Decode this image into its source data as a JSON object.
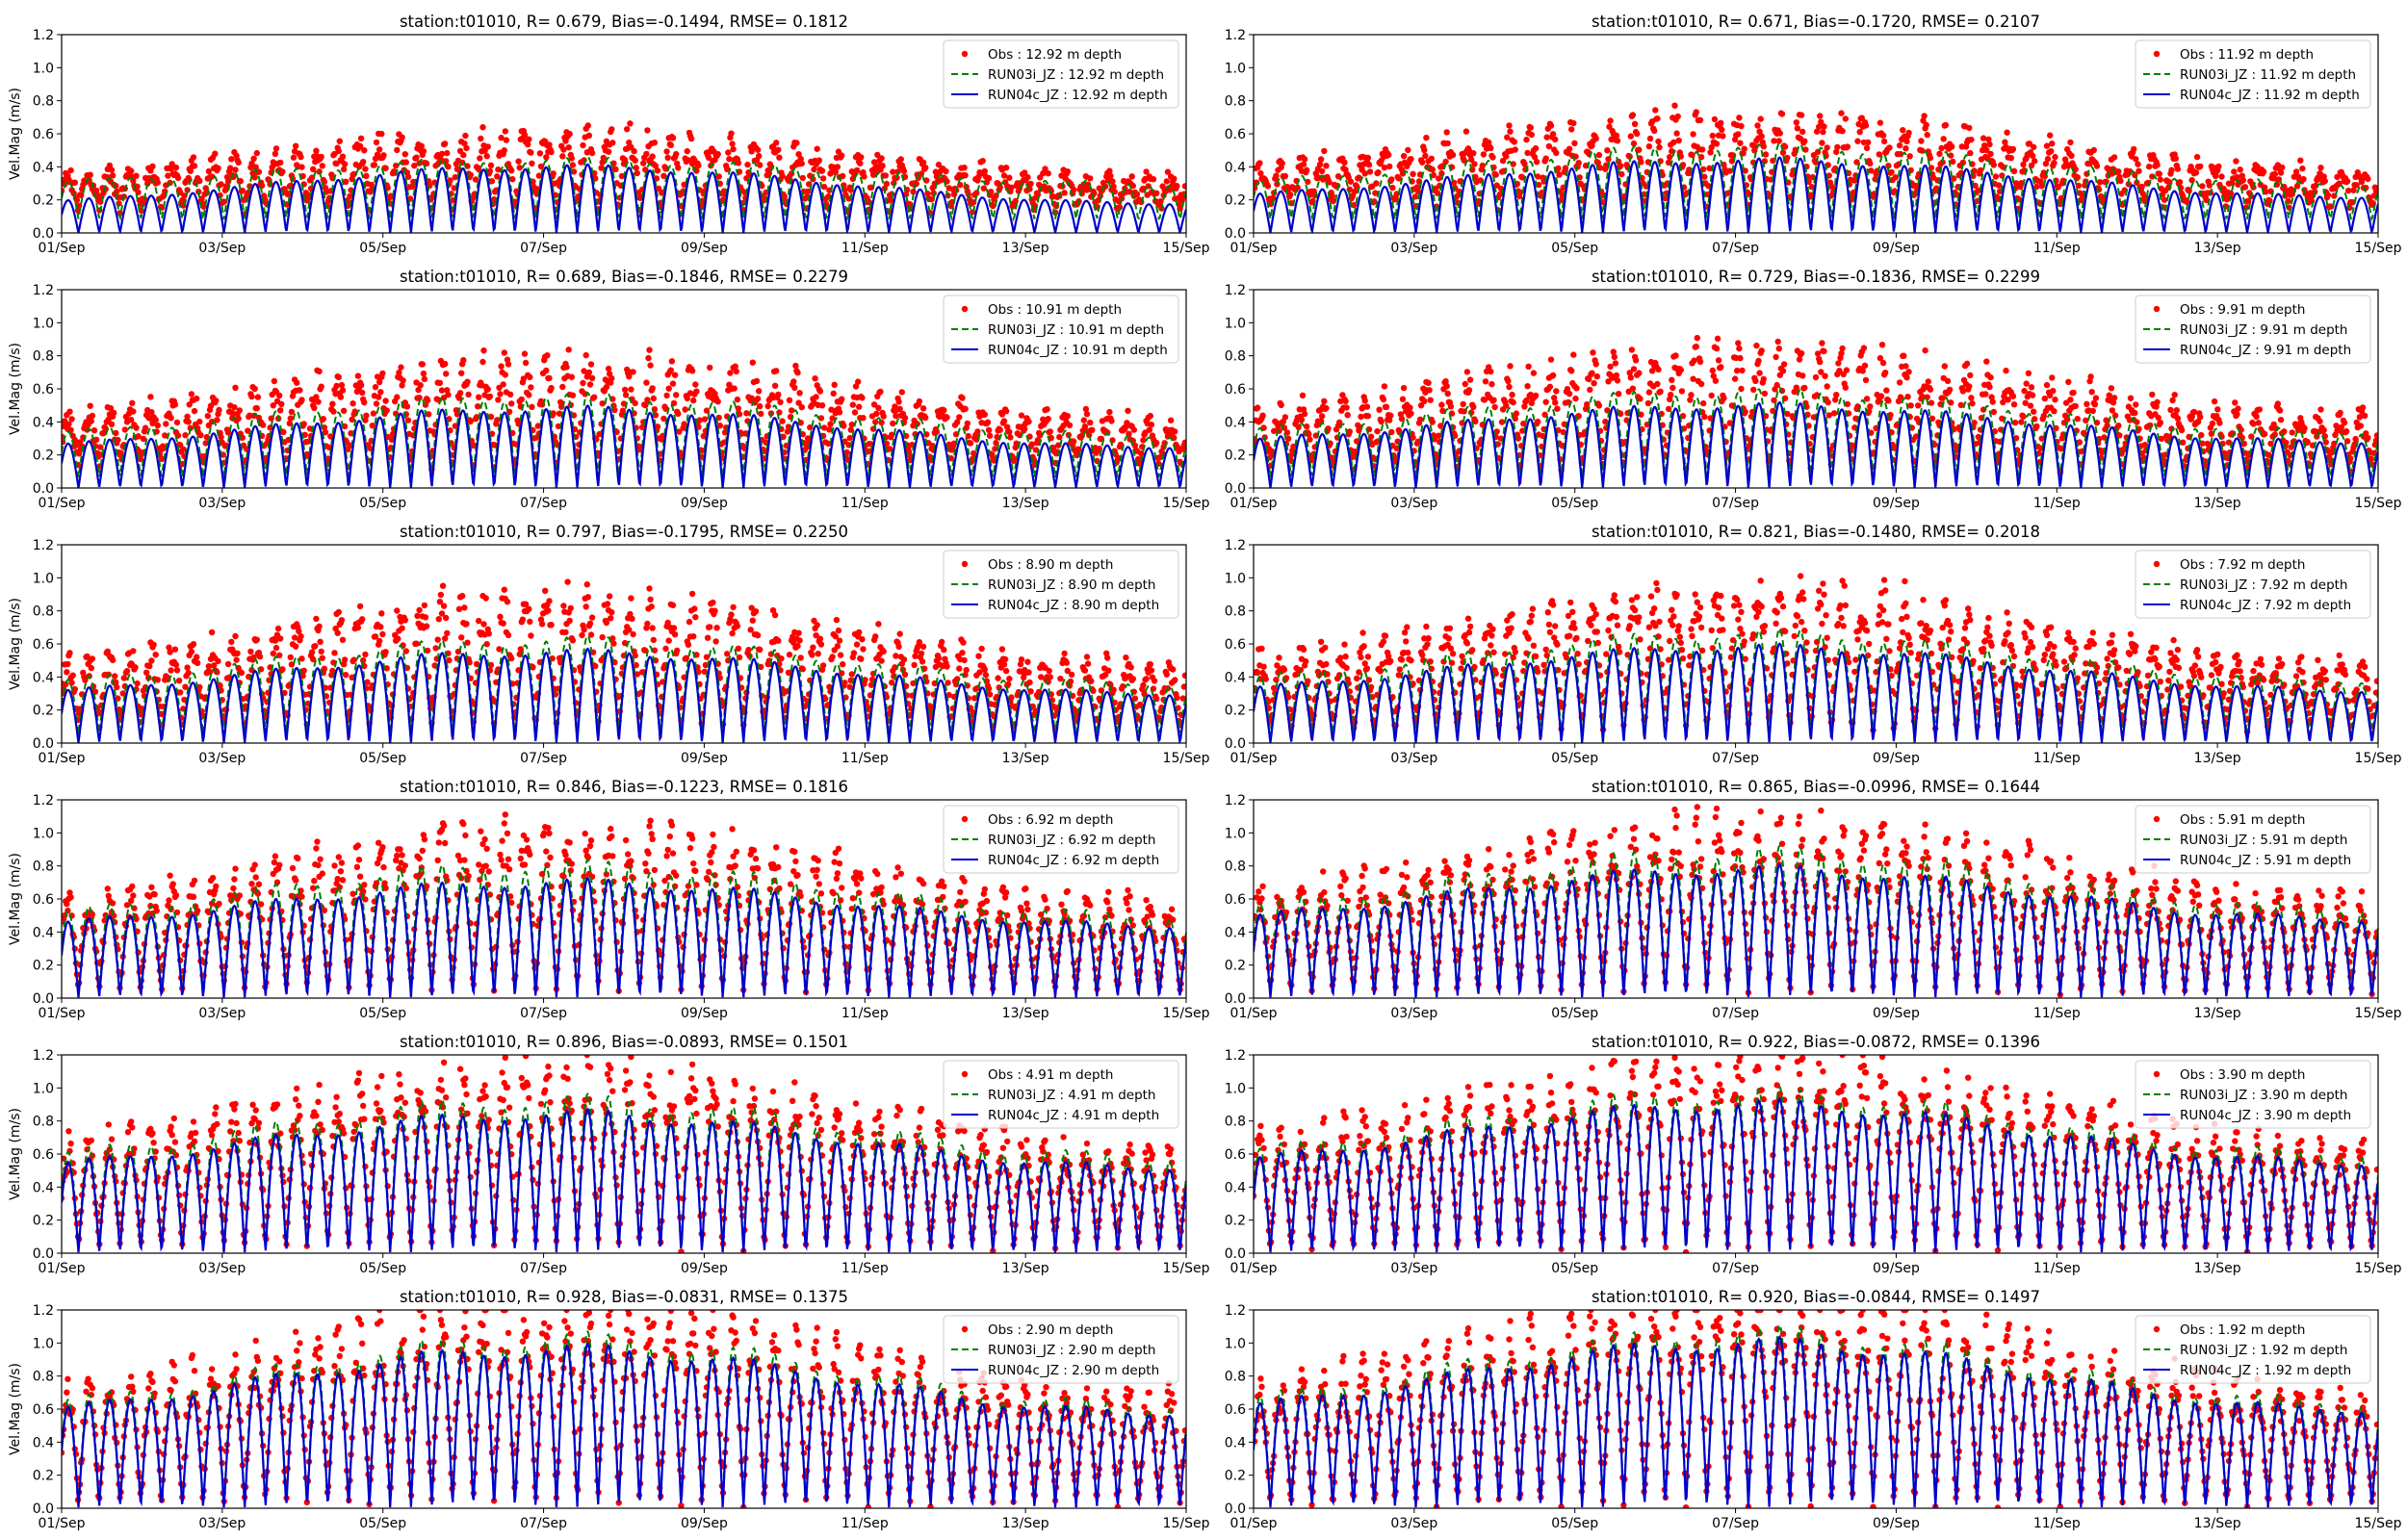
{
  "figure": {
    "background": "#ffffff"
  },
  "style": {
    "obs_color": "#ff0000",
    "run03_color": "#008000",
    "run04_color": "#0000cc",
    "axes_color": "#000000"
  },
  "chart_data": [
    {
      "type": "line",
      "panel": 1,
      "title": "station:t01010, R= 0.679, Bias=-0.1494, RMSE= 0.1812",
      "xlabel": "",
      "ylabel": "Vel.Mag (m/s)",
      "xlim": [
        "2000-09-01",
        "2000-09-15"
      ],
      "x_ticks": [
        "01/Sep",
        "03/Sep",
        "05/Sep",
        "07/Sep",
        "09/Sep",
        "11/Sep",
        "13/Sep",
        "15/Sep"
      ],
      "ylim": [
        0,
        1.2
      ],
      "y_ticks": [
        "0.0",
        "0.2",
        "0.4",
        "0.6",
        "0.8",
        "1.0",
        "1.2"
      ],
      "grid": false,
      "legend": "upper right",
      "series": [
        {
          "name": "Obs : 12.92 m depth",
          "style": "markers",
          "color": "#ff0000",
          "amp_lo": 0.32,
          "amp_hi": 0.58,
          "base": 0.16
        },
        {
          "name": "RUN03i_JZ : 12.92 m depth",
          "style": "dashed",
          "color": "#008000",
          "amp_lo": 0.3,
          "amp_hi": 0.44,
          "base": 0.08
        },
        {
          "name": "RUN04c_JZ : 12.92 m depth",
          "style": "solid",
          "color": "#0000cc",
          "amp_lo": 0.18,
          "amp_hi": 0.4,
          "base": 0.0
        }
      ]
    },
    {
      "type": "line",
      "panel": 2,
      "title": "station:t01010, R= 0.671, Bias=-0.1720, RMSE= 0.2107",
      "xlabel": "",
      "ylabel": "",
      "xlim": [
        "2000-09-01",
        "2000-09-15"
      ],
      "x_ticks": [
        "01/Sep",
        "03/Sep",
        "05/Sep",
        "07/Sep",
        "09/Sep",
        "11/Sep",
        "13/Sep",
        "15/Sep"
      ],
      "ylim": [
        0,
        1.2
      ],
      "y_ticks": [
        "0.0",
        "0.2",
        "0.4",
        "0.6",
        "0.8",
        "1.0",
        "1.2"
      ],
      "grid": false,
      "legend": "upper right",
      "series": [
        {
          "name": "Obs : 11.92 m depth",
          "style": "markers",
          "color": "#ff0000",
          "amp_lo": 0.36,
          "amp_hi": 0.68,
          "base": 0.18
        },
        {
          "name": "RUN03i_JZ : 11.92 m depth",
          "style": "dashed",
          "color": "#008000",
          "amp_lo": 0.3,
          "amp_hi": 0.52,
          "base": 0.08
        },
        {
          "name": "RUN04c_JZ : 11.92 m depth",
          "style": "solid",
          "color": "#0000cc",
          "amp_lo": 0.22,
          "amp_hi": 0.44,
          "base": 0.0
        }
      ]
    },
    {
      "type": "line",
      "panel": 3,
      "title": "station:t01010, R= 0.689, Bias=-0.1846, RMSE= 0.2279",
      "xlabel": "",
      "ylabel": "Vel.Mag (m/s)",
      "xlim": [
        "2000-09-01",
        "2000-09-15"
      ],
      "x_ticks": [
        "01/Sep",
        "03/Sep",
        "05/Sep",
        "07/Sep",
        "09/Sep",
        "11/Sep",
        "13/Sep",
        "15/Sep"
      ],
      "ylim": [
        0,
        1.2
      ],
      "y_ticks": [
        "0.0",
        "0.2",
        "0.4",
        "0.6",
        "0.8",
        "1.0",
        "1.2"
      ],
      "grid": false,
      "legend": "upper right",
      "series": [
        {
          "name": "Obs : 10.91 m depth",
          "style": "markers",
          "color": "#ff0000",
          "amp_lo": 0.4,
          "amp_hi": 0.74,
          "base": 0.16
        },
        {
          "name": "RUN03i_JZ : 10.91 m depth",
          "style": "dashed",
          "color": "#008000",
          "amp_lo": 0.32,
          "amp_hi": 0.55,
          "base": 0.06
        },
        {
          "name": "RUN04c_JZ : 10.91 m depth",
          "style": "solid",
          "color": "#0000cc",
          "amp_lo": 0.25,
          "amp_hi": 0.48,
          "base": 0.0
        }
      ]
    },
    {
      "type": "line",
      "panel": 4,
      "title": "station:t01010, R= 0.729, Bias=-0.1836, RMSE= 0.2299",
      "xlabel": "",
      "ylabel": "",
      "xlim": [
        "2000-09-01",
        "2000-09-15"
      ],
      "x_ticks": [
        "01/Sep",
        "03/Sep",
        "05/Sep",
        "07/Sep",
        "09/Sep",
        "11/Sep",
        "13/Sep",
        "15/Sep"
      ],
      "ylim": [
        0,
        1.2
      ],
      "y_ticks": [
        "0.0",
        "0.2",
        "0.4",
        "0.6",
        "0.8",
        "1.0",
        "1.2"
      ],
      "grid": false,
      "legend": "upper right",
      "series": [
        {
          "name": "Obs : 9.91 m depth",
          "style": "markers",
          "color": "#ff0000",
          "amp_lo": 0.42,
          "amp_hi": 0.8,
          "base": 0.14
        },
        {
          "name": "RUN03i_JZ : 9.91 m depth",
          "style": "dashed",
          "color": "#008000",
          "amp_lo": 0.34,
          "amp_hi": 0.58,
          "base": 0.06
        },
        {
          "name": "RUN04c_JZ : 9.91 m depth",
          "style": "solid",
          "color": "#0000cc",
          "amp_lo": 0.28,
          "amp_hi": 0.5,
          "base": 0.0
        }
      ]
    },
    {
      "type": "line",
      "panel": 5,
      "title": "station:t01010, R= 0.797, Bias=-0.1795, RMSE= 0.2250",
      "xlabel": "",
      "ylabel": "Vel.Mag (m/s)",
      "xlim": [
        "2000-09-01",
        "2000-09-15"
      ],
      "x_ticks": [
        "01/Sep",
        "03/Sep",
        "05/Sep",
        "07/Sep",
        "09/Sep",
        "11/Sep",
        "13/Sep",
        "15/Sep"
      ],
      "ylim": [
        0,
        1.2
      ],
      "y_ticks": [
        "0.0",
        "0.2",
        "0.4",
        "0.6",
        "0.8",
        "1.0",
        "1.2"
      ],
      "grid": false,
      "legend": "upper right",
      "series": [
        {
          "name": "Obs : 8.90 m depth",
          "style": "markers",
          "color": "#ff0000",
          "amp_lo": 0.45,
          "amp_hi": 0.85,
          "base": 0.12
        },
        {
          "name": "RUN03i_JZ : 8.90 m depth",
          "style": "dashed",
          "color": "#008000",
          "amp_lo": 0.36,
          "amp_hi": 0.62,
          "base": 0.05
        },
        {
          "name": "RUN04c_JZ : 8.90 m depth",
          "style": "solid",
          "color": "#0000cc",
          "amp_lo": 0.3,
          "amp_hi": 0.55,
          "base": 0.0
        }
      ]
    },
    {
      "type": "line",
      "panel": 6,
      "title": "station:t01010, R= 0.821, Bias=-0.1480, RMSE= 0.2018",
      "xlabel": "",
      "ylabel": "",
      "xlim": [
        "2000-09-01",
        "2000-09-15"
      ],
      "x_ticks": [
        "01/Sep",
        "03/Sep",
        "05/Sep",
        "07/Sep",
        "09/Sep",
        "11/Sep",
        "13/Sep",
        "15/Sep"
      ],
      "ylim": [
        0,
        1.2
      ],
      "y_ticks": [
        "0.0",
        "0.2",
        "0.4",
        "0.6",
        "0.8",
        "1.0",
        "1.2"
      ],
      "grid": false,
      "legend": "upper right",
      "series": [
        {
          "name": "Obs : 7.92 m depth",
          "style": "markers",
          "color": "#ff0000",
          "amp_lo": 0.46,
          "amp_hi": 0.9,
          "base": 0.1
        },
        {
          "name": "RUN03i_JZ : 7.92 m depth",
          "style": "dashed",
          "color": "#008000",
          "amp_lo": 0.38,
          "amp_hi": 0.66,
          "base": 0.04
        },
        {
          "name": "RUN04c_JZ : 7.92 m depth",
          "style": "solid",
          "color": "#0000cc",
          "amp_lo": 0.32,
          "amp_hi": 0.58,
          "base": 0.0
        }
      ]
    },
    {
      "type": "line",
      "panel": 7,
      "title": "station:t01010, R= 0.846, Bias=-0.1223, RMSE= 0.1816",
      "xlabel": "",
      "ylabel": "Vel.Mag (m/s)",
      "xlim": [
        "2000-09-01",
        "2000-09-15"
      ],
      "x_ticks": [
        "01/Sep",
        "03/Sep",
        "05/Sep",
        "07/Sep",
        "09/Sep",
        "11/Sep",
        "13/Sep",
        "15/Sep"
      ],
      "ylim": [
        0,
        1.2
      ],
      "y_ticks": [
        "0.0",
        "0.2",
        "0.4",
        "0.6",
        "0.8",
        "1.0",
        "1.2"
      ],
      "grid": false,
      "legend": "upper right",
      "series": [
        {
          "name": "Obs : 6.92 m depth",
          "style": "markers",
          "color": "#ff0000",
          "amp_lo": 0.55,
          "amp_hi": 0.98,
          "base": 0.06
        },
        {
          "name": "RUN03i_JZ : 6.92 m depth",
          "style": "dashed",
          "color": "#008000",
          "amp_lo": 0.5,
          "amp_hi": 0.8,
          "base": 0.02
        },
        {
          "name": "RUN04c_JZ : 6.92 m depth",
          "style": "solid",
          "color": "#0000cc",
          "amp_lo": 0.44,
          "amp_hi": 0.7,
          "base": 0.0
        }
      ]
    },
    {
      "type": "line",
      "panel": 8,
      "title": "station:t01010, R= 0.865, Bias=-0.0996, RMSE= 0.1644",
      "xlabel": "",
      "ylabel": "",
      "xlim": [
        "2000-09-01",
        "2000-09-15"
      ],
      "x_ticks": [
        "01/Sep",
        "03/Sep",
        "05/Sep",
        "07/Sep",
        "09/Sep",
        "11/Sep",
        "13/Sep",
        "15/Sep"
      ],
      "ylim": [
        0,
        1.2
      ],
      "y_ticks": [
        "0.0",
        "0.2",
        "0.4",
        "0.6",
        "0.8",
        "1.0",
        "1.2"
      ],
      "grid": false,
      "legend": "upper right",
      "series": [
        {
          "name": "Obs : 5.91 m depth",
          "style": "markers",
          "color": "#ff0000",
          "amp_lo": 0.58,
          "amp_hi": 1.02,
          "base": 0.05
        },
        {
          "name": "RUN03i_JZ : 5.91 m depth",
          "style": "dashed",
          "color": "#008000",
          "amp_lo": 0.54,
          "amp_hi": 0.88,
          "base": 0.02
        },
        {
          "name": "RUN04c_JZ : 5.91 m depth",
          "style": "solid",
          "color": "#0000cc",
          "amp_lo": 0.48,
          "amp_hi": 0.78,
          "base": 0.0
        }
      ]
    },
    {
      "type": "line",
      "panel": 9,
      "title": "station:t01010, R= 0.896, Bias=-0.0893, RMSE= 0.1501",
      "xlabel": "",
      "ylabel": "Vel.Mag (m/s)",
      "xlim": [
        "2000-09-01",
        "2000-09-15"
      ],
      "x_ticks": [
        "01/Sep",
        "03/Sep",
        "05/Sep",
        "07/Sep",
        "09/Sep",
        "11/Sep",
        "13/Sep",
        "15/Sep"
      ],
      "ylim": [
        0,
        1.2
      ],
      "y_ticks": [
        "0.0",
        "0.2",
        "0.4",
        "0.6",
        "0.8",
        "1.0",
        "1.2"
      ],
      "grid": false,
      "legend": "upper right",
      "series": [
        {
          "name": "Obs : 4.91 m depth",
          "style": "markers",
          "color": "#ff0000",
          "amp_lo": 0.62,
          "amp_hi": 1.08,
          "base": 0.04
        },
        {
          "name": "RUN03i_JZ : 4.91 m depth",
          "style": "dashed",
          "color": "#008000",
          "amp_lo": 0.58,
          "amp_hi": 0.92,
          "base": 0.01
        },
        {
          "name": "RUN04c_JZ : 4.91 m depth",
          "style": "solid",
          "color": "#0000cc",
          "amp_lo": 0.52,
          "amp_hi": 0.84,
          "base": 0.0
        }
      ]
    },
    {
      "type": "line",
      "panel": 10,
      "title": "station:t01010, R= 0.922, Bias=-0.0872, RMSE= 0.1396",
      "xlabel": "",
      "ylabel": "",
      "xlim": [
        "2000-09-01",
        "2000-09-15"
      ],
      "x_ticks": [
        "01/Sep",
        "03/Sep",
        "05/Sep",
        "07/Sep",
        "09/Sep",
        "11/Sep",
        "13/Sep",
        "15/Sep"
      ],
      "ylim": [
        0,
        1.2
      ],
      "y_ticks": [
        "0.0",
        "0.2",
        "0.4",
        "0.6",
        "0.8",
        "1.0",
        "1.2"
      ],
      "grid": false,
      "legend": "upper right",
      "series": [
        {
          "name": "Obs : 3.90 m depth",
          "style": "markers",
          "color": "#ff0000",
          "amp_lo": 0.64,
          "amp_hi": 1.12,
          "base": 0.03
        },
        {
          "name": "RUN03i_JZ : 3.90 m depth",
          "style": "dashed",
          "color": "#008000",
          "amp_lo": 0.6,
          "amp_hi": 0.96,
          "base": 0.01
        },
        {
          "name": "RUN04c_JZ : 3.90 m depth",
          "style": "solid",
          "color": "#0000cc",
          "amp_lo": 0.55,
          "amp_hi": 0.9,
          "base": 0.0
        }
      ]
    },
    {
      "type": "line",
      "panel": 11,
      "title": "station:t01010, R= 0.928, Bias=-0.0831, RMSE= 0.1375",
      "xlabel": "",
      "ylabel": "Vel.Mag (m/s)",
      "xlim": [
        "2000-09-01",
        "2000-09-15"
      ],
      "x_ticks": [
        "01/Sep",
        "03/Sep",
        "05/Sep",
        "07/Sep",
        "09/Sep",
        "11/Sep",
        "13/Sep",
        "15/Sep"
      ],
      "ylim": [
        0,
        1.2
      ],
      "y_ticks": [
        "0.0",
        "0.2",
        "0.4",
        "0.6",
        "0.8",
        "1.0",
        "1.2"
      ],
      "grid": false,
      "legend": "upper right",
      "series": [
        {
          "name": "Obs : 2.90 m depth",
          "style": "markers",
          "color": "#ff0000",
          "amp_lo": 0.66,
          "amp_hi": 1.16,
          "base": 0.03
        },
        {
          "name": "RUN03i_JZ : 2.90 m depth",
          "style": "dashed",
          "color": "#008000",
          "amp_lo": 0.62,
          "amp_hi": 1.02,
          "base": 0.01
        },
        {
          "name": "RUN04c_JZ : 2.90 m depth",
          "style": "solid",
          "color": "#0000cc",
          "amp_lo": 0.58,
          "amp_hi": 0.96,
          "base": 0.0
        }
      ]
    },
    {
      "type": "line",
      "panel": 12,
      "title": "station:t01010, R= 0.920, Bias=-0.0844, RMSE= 0.1497",
      "xlabel": "",
      "ylabel": "",
      "xlim": [
        "2000-09-01",
        "2000-09-15"
      ],
      "x_ticks": [
        "01/Sep",
        "03/Sep",
        "05/Sep",
        "07/Sep",
        "09/Sep",
        "11/Sep",
        "13/Sep",
        "15/Sep"
      ],
      "ylim": [
        0,
        1.2
      ],
      "y_ticks": [
        "0.0",
        "0.2",
        "0.4",
        "0.6",
        "0.8",
        "1.0",
        "1.2"
      ],
      "grid": false,
      "legend": "upper right",
      "series": [
        {
          "name": "Obs : 1.92 m depth",
          "style": "markers",
          "color": "#ff0000",
          "amp_lo": 0.68,
          "amp_hi": 1.2,
          "base": 0.02
        },
        {
          "name": "RUN03i_JZ : 1.92 m depth",
          "style": "dashed",
          "color": "#008000",
          "amp_lo": 0.64,
          "amp_hi": 1.06,
          "base": 0.01
        },
        {
          "name": "RUN04c_JZ : 1.92 m depth",
          "style": "solid",
          "color": "#0000cc",
          "amp_lo": 0.6,
          "amp_hi": 1.0,
          "base": 0.0
        }
      ]
    }
  ]
}
